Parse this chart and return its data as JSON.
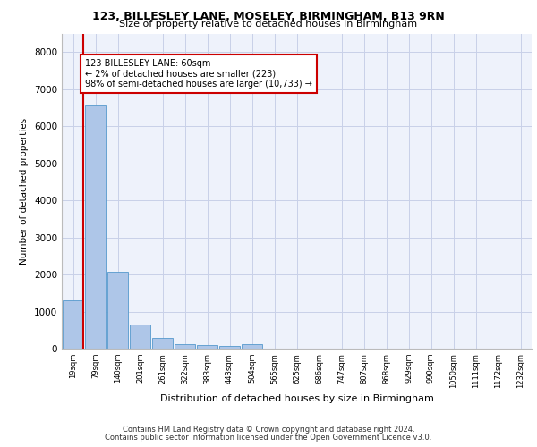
{
  "title_line1": "123, BILLESLEY LANE, MOSELEY, BIRMINGHAM, B13 9RN",
  "title_line2": "Size of property relative to detached houses in Birmingham",
  "xlabel": "Distribution of detached houses by size in Birmingham",
  "ylabel": "Number of detached properties",
  "footer_line1": "Contains HM Land Registry data © Crown copyright and database right 2024.",
  "footer_line2": "Contains public sector information licensed under the Open Government Licence v3.0.",
  "categories": [
    "19sqm",
    "79sqm",
    "140sqm",
    "201sqm",
    "261sqm",
    "322sqm",
    "383sqm",
    "443sqm",
    "504sqm",
    "565sqm",
    "625sqm",
    "686sqm",
    "747sqm",
    "807sqm",
    "868sqm",
    "929sqm",
    "990sqm",
    "1050sqm",
    "1111sqm",
    "1172sqm",
    "1232sqm"
  ],
  "values": [
    1300,
    6550,
    2080,
    650,
    290,
    130,
    95,
    80,
    120,
    0,
    0,
    0,
    0,
    0,
    0,
    0,
    0,
    0,
    0,
    0,
    0
  ],
  "bar_color": "#aec6e8",
  "bar_edge_color": "#5599cc",
  "marker_color": "#cc0000",
  "annotation_box_edge": "#cc0000",
  "ylim": [
    0,
    8500
  ],
  "yticks": [
    0,
    1000,
    2000,
    3000,
    4000,
    5000,
    6000,
    7000,
    8000
  ],
  "fig_bg_color": "#ffffff",
  "plot_bg_color": "#eef2fb",
  "grid_color": "#c8d0e8"
}
